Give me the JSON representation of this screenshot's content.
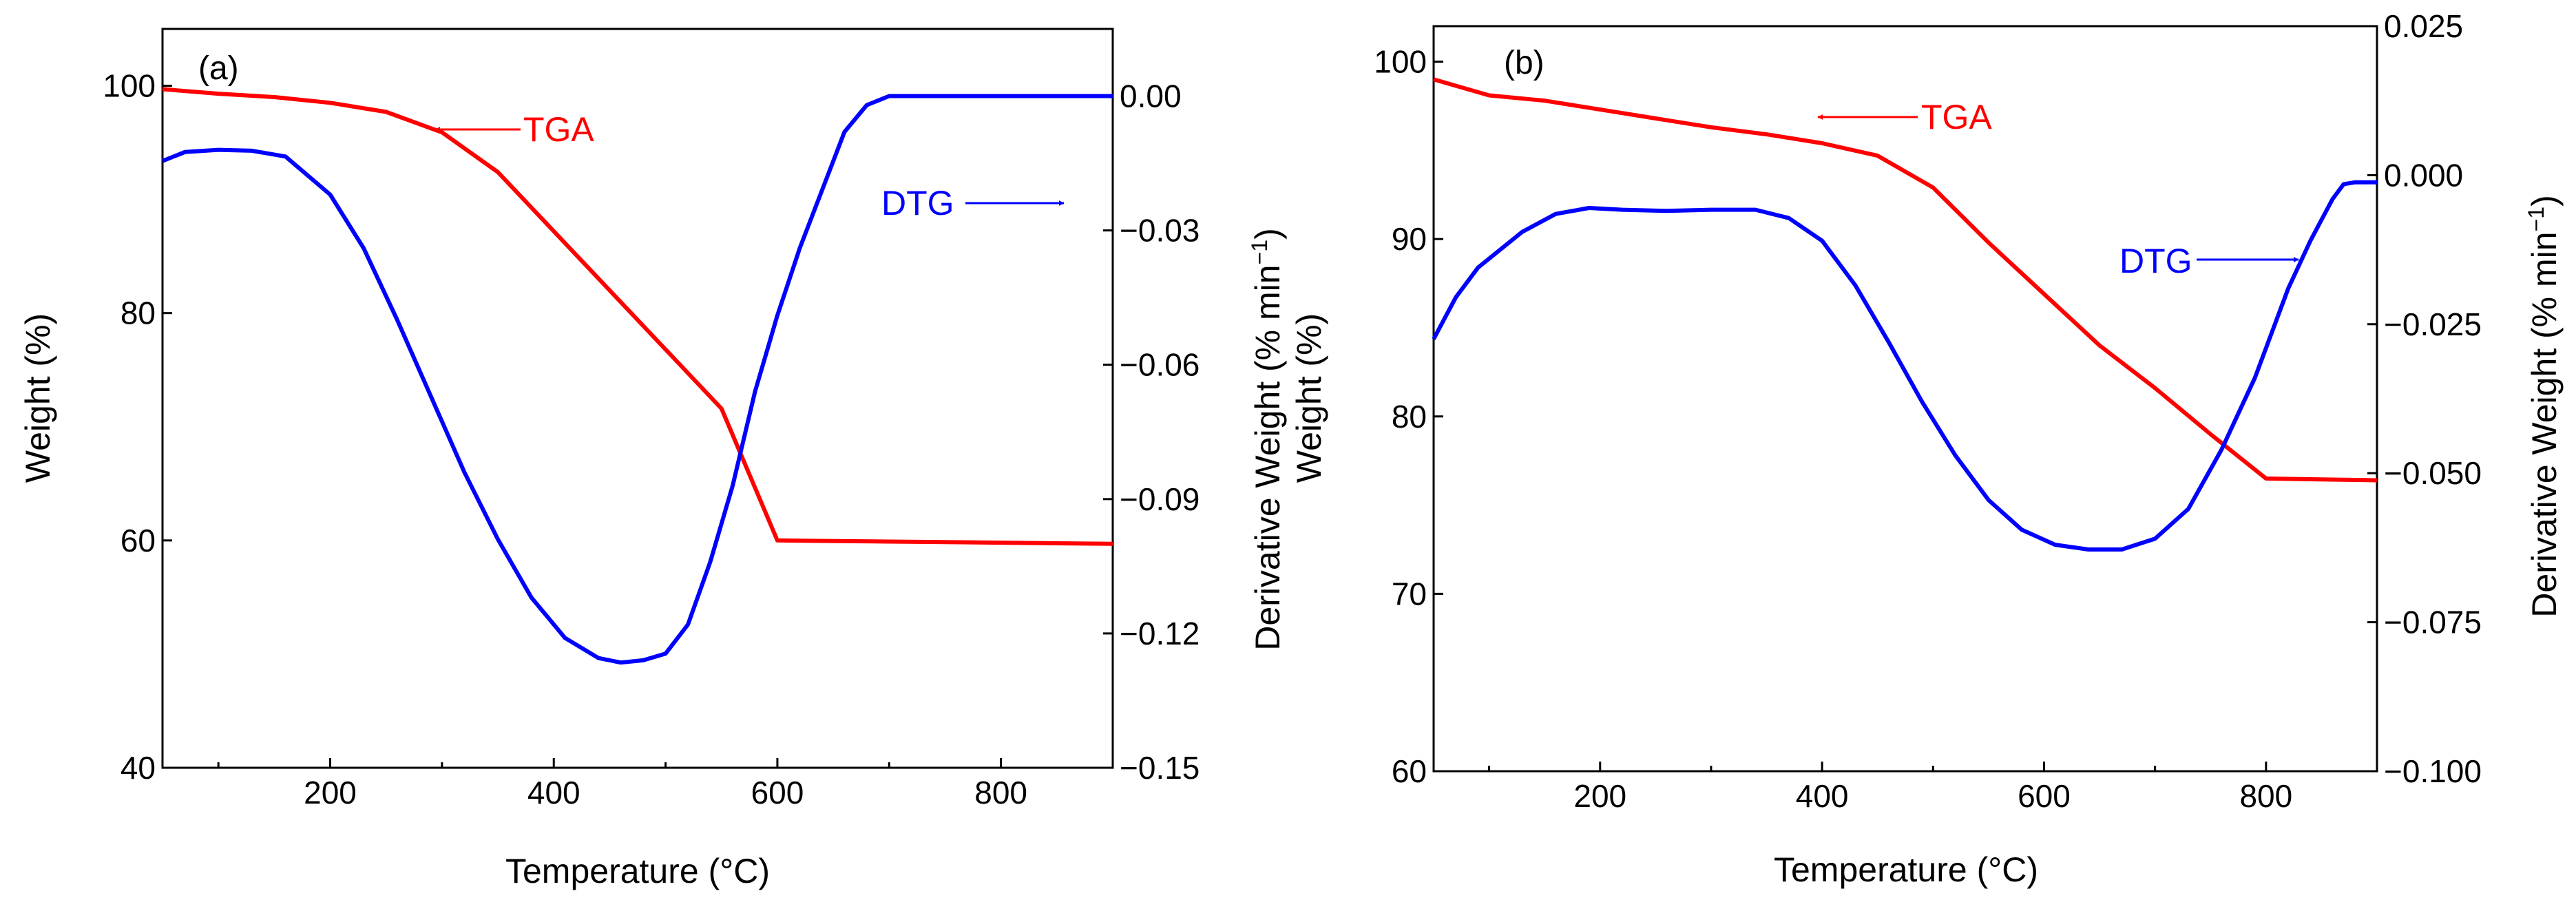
{
  "chart_data": [
    {
      "panel_label": "(a)",
      "type": "line",
      "xlabel": "Temperature (°C)",
      "ylabel_left": "Weight (%)",
      "ylabel_right": "Derivative Weight (% min",
      "ylabel_right_sup": "−1",
      "ylabel_right_close": ")",
      "xlim": [
        50,
        900
      ],
      "ylim_left": [
        40,
        105
      ],
      "ylim_right": [
        -0.15,
        0.015
      ],
      "x_ticks": [
        "200",
        "400",
        "600",
        "800"
      ],
      "left_ticks": [
        "40",
        "60",
        "80",
        "100"
      ],
      "right_ticks": [
        "0.00",
        "−0.03",
        "−0.06",
        "−0.09",
        "−0.12",
        "−0.15"
      ],
      "series": [
        {
          "name": "TGA",
          "axis": "left",
          "color": "#ff0000",
          "x": [
            50,
            100,
            150,
            200,
            250,
            300,
            350,
            400,
            450,
            500,
            550,
            600,
            650,
            700,
            750,
            800,
            850,
            900
          ],
          "y": [
            99.7,
            99.3,
            99.0,
            98.5,
            97.7,
            95.9,
            92.4,
            87.2,
            82.0,
            76.8,
            71.6,
            60.0,
            59.95,
            59.9,
            59.85,
            59.8,
            59.75,
            59.7
          ]
        },
        {
          "name": "DTG",
          "axis": "right",
          "color": "#0000ff",
          "x": [
            50,
            70,
            100,
            130,
            160,
            200,
            230,
            260,
            290,
            320,
            350,
            380,
            410,
            440,
            460,
            480,
            500,
            520,
            540,
            560,
            580,
            600,
            620,
            640,
            660,
            680,
            700,
            750,
            800,
            850,
            900
          ],
          "y": [
            -0.0145,
            -0.0125,
            -0.012,
            -0.0122,
            -0.0135,
            -0.022,
            -0.034,
            -0.05,
            -0.067,
            -0.084,
            -0.099,
            -0.112,
            -0.121,
            -0.1255,
            -0.1265,
            -0.126,
            -0.1245,
            -0.118,
            -0.104,
            -0.087,
            -0.066,
            -0.049,
            -0.034,
            -0.021,
            -0.008,
            -0.002,
            0.0,
            0.0,
            0.0,
            0.0,
            0.0
          ]
        }
      ],
      "annotations": [
        {
          "text": "TGA",
          "color": "#ff0000"
        },
        {
          "text": "DTG",
          "color": "#0000ff"
        }
      ]
    },
    {
      "panel_label": "(b)",
      "type": "line",
      "xlabel": "Temperature (°C)",
      "ylabel_left": "Weight (%)",
      "ylabel_right": "Derivative Weight (% min",
      "ylabel_right_sup": "−1",
      "ylabel_right_close": ")",
      "xlim": [
        50,
        900
      ],
      "ylim_left": [
        60,
        102
      ],
      "ylim_right": [
        -0.1,
        0.025
      ],
      "x_ticks": [
        "200",
        "400",
        "600",
        "800"
      ],
      "left_ticks": [
        "60",
        "70",
        "80",
        "90",
        "100"
      ],
      "right_ticks": [
        "0.025",
        "0.000",
        "−0.025",
        "−0.050",
        "−0.075",
        "−0.100"
      ],
      "series": [
        {
          "name": "TGA",
          "axis": "left",
          "color": "#ff0000",
          "x": [
            50,
            100,
            150,
            200,
            250,
            300,
            350,
            400,
            450,
            500,
            550,
            600,
            650,
            700,
            750,
            800,
            850,
            900
          ],
          "y": [
            99.0,
            98.1,
            97.8,
            97.3,
            96.8,
            96.3,
            95.9,
            95.4,
            94.7,
            92.9,
            89.8,
            86.9,
            84.0,
            81.6,
            79.0,
            76.5,
            76.45,
            76.4
          ]
        },
        {
          "name": "DTG",
          "axis": "right",
          "color": "#0000ff",
          "x": [
            50,
            70,
            90,
            110,
            130,
            160,
            190,
            220,
            260,
            300,
            340,
            370,
            400,
            430,
            460,
            490,
            520,
            550,
            580,
            610,
            640,
            670,
            700,
            730,
            760,
            790,
            820,
            840,
            860,
            870,
            880,
            900
          ],
          "y": [
            -0.0275,
            -0.0205,
            -0.0155,
            -0.0125,
            -0.0095,
            -0.0065,
            -0.0055,
            -0.0058,
            -0.006,
            -0.0058,
            -0.0058,
            -0.0072,
            -0.011,
            -0.0185,
            -0.028,
            -0.038,
            -0.047,
            -0.0545,
            -0.0595,
            -0.062,
            -0.0628,
            -0.0628,
            -0.061,
            -0.056,
            -0.046,
            -0.034,
            -0.019,
            -0.011,
            -0.004,
            -0.0015,
            -0.0012,
            -0.0012
          ]
        }
      ],
      "annotations": [
        {
          "text": "TGA",
          "color": "#ff0000"
        },
        {
          "text": "DTG",
          "color": "#0000ff"
        }
      ]
    }
  ]
}
